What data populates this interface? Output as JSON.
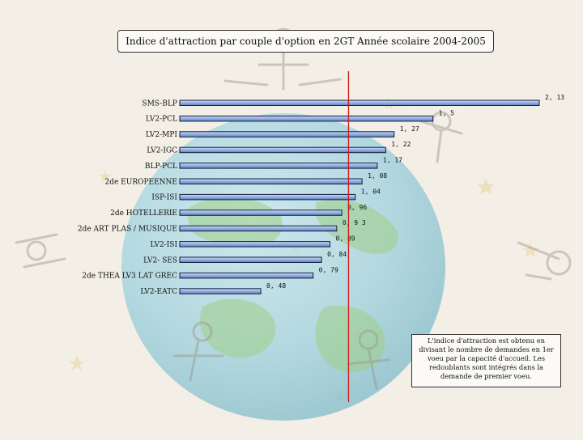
{
  "title": "Indice d'attraction par couple d'option en 2GT Année scolaire 2004-2005",
  "note": "L'indice d'attraction est obtenu en divisant le nombre de demandes en 1er voeu par la capacité d'accueil. Les redoublants sont intégrés dans la demande de premier voeu.",
  "colors": {
    "bar_light": "#c9dcf7",
    "bar_dark": "#5a83c6",
    "bar_stroke": "#1a1a3a",
    "reference_line": "#d01818"
  },
  "chart_data": {
    "type": "bar",
    "orientation": "horizontal",
    "title": "Indice d'attraction par couple d'option en 2GT Année scolaire 2004-2005",
    "categories": [
      "SMS-BLP",
      "LV2-PCL",
      "LV2-MPI",
      "LV2-IGC",
      "BLP-PCL",
      "2de EUROPEENNE",
      "ISP-ISI",
      "2de HOTELLERIE",
      "2de ART PLAS / MUSIQUE",
      "LV2-ISI",
      "LV2- SES",
      "2de THEA LV3 LAT GREC",
      "LV2-EATC"
    ],
    "values": [
      2.13,
      1.5,
      1.27,
      1.22,
      1.17,
      1.08,
      1.04,
      0.96,
      0.93,
      0.89,
      0.84,
      0.79,
      0.48
    ],
    "value_labels": [
      "2, 13",
      "1, 5",
      "1, 27",
      "1, 22",
      "1, 17",
      "1, 08",
      "1, 04",
      "0, 96",
      "0, 9 3",
      "0, 89",
      "0, 84",
      "0, 79",
      "0, 48"
    ],
    "reference_value": 1,
    "xlim": [
      0,
      2.13
    ],
    "grid": false,
    "legend": "none"
  }
}
